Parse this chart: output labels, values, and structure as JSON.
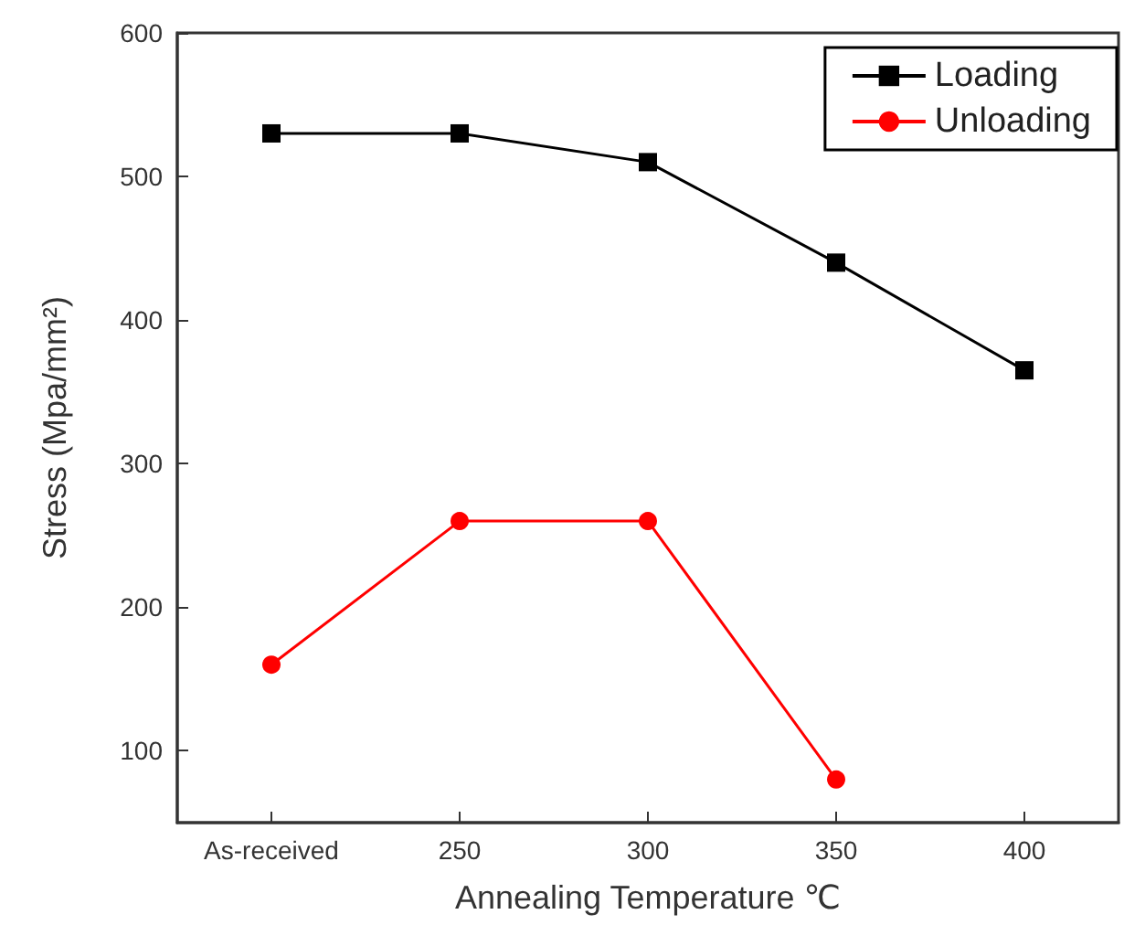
{
  "chart_data": {
    "type": "line",
    "xlabel": "Annealing Temperature ℃",
    "ylabel": "Stress (Mpa/mm²)",
    "categories": [
      "As-received",
      "250",
      "300",
      "350",
      "400"
    ],
    "series": [
      {
        "name": "Loading",
        "color": "#000000",
        "marker": "square",
        "values": [
          530,
          530,
          510,
          440,
          365
        ]
      },
      {
        "name": "Unloading",
        "color": "#ff0000",
        "marker": "circle",
        "values": [
          160,
          260,
          260,
          80,
          null
        ]
      }
    ],
    "ylim": [
      50,
      600
    ],
    "yticks": [
      100,
      200,
      300,
      400,
      500,
      600
    ],
    "grid": false,
    "legend": "top right",
    "line_style": "solid"
  }
}
